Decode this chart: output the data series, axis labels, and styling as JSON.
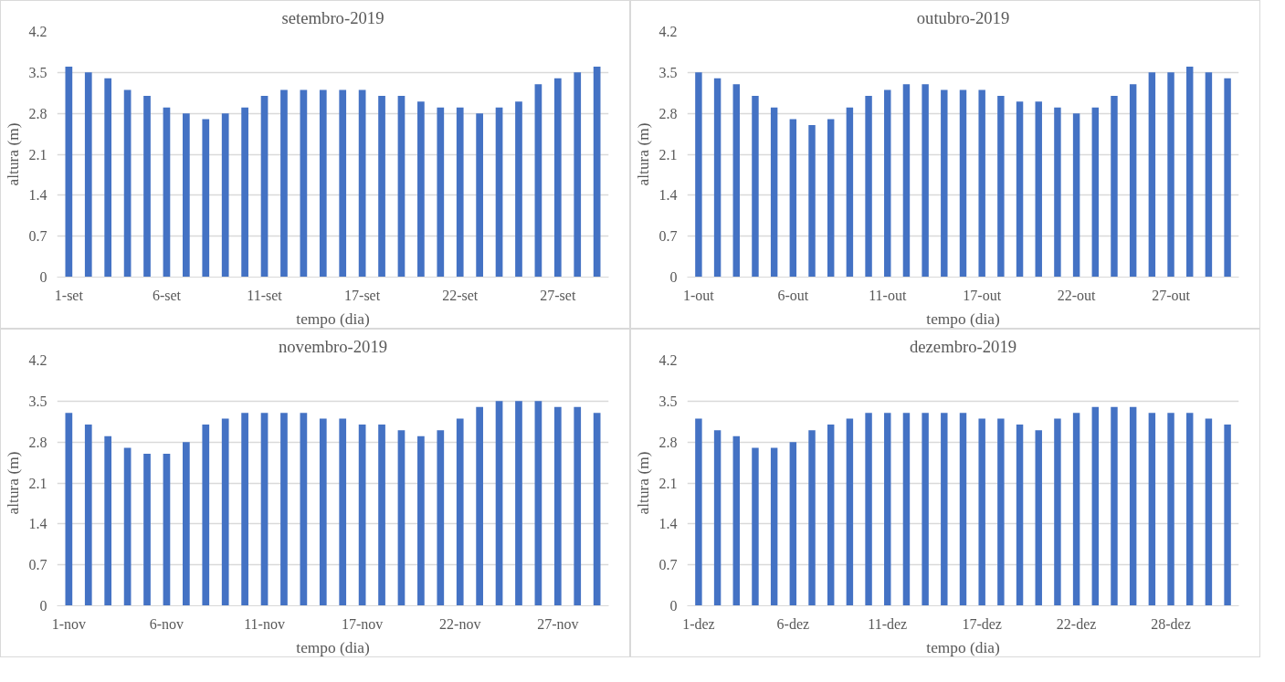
{
  "chart_data": [
    {
      "type": "bar",
      "title": "setembro-2019",
      "xlabel": "tempo (dia)",
      "ylabel": "altura (m)",
      "color": "#4472c4",
      "ylim": [
        0,
        4.2
      ],
      "yticks": [
        0,
        0.7,
        1.4,
        2.1,
        2.8,
        3.5,
        4.2
      ],
      "grid": "y",
      "categories": [
        "1-set",
        null,
        null,
        null,
        null,
        "6-set",
        null,
        null,
        null,
        null,
        "11-set",
        null,
        null,
        null,
        null,
        "17-set",
        null,
        null,
        null,
        null,
        "22-set",
        null,
        null,
        null,
        null,
        "27-set",
        null,
        null
      ],
      "values": [
        3.6,
        3.5,
        3.4,
        3.2,
        3.1,
        2.9,
        2.8,
        2.7,
        2.8,
        2.9,
        3.1,
        3.2,
        3.2,
        3.2,
        3.2,
        3.2,
        3.1,
        3.1,
        3.0,
        2.9,
        2.9,
        2.8,
        2.9,
        3.0,
        3.3,
        3.4,
        3.5,
        3.6
      ]
    },
    {
      "type": "bar",
      "title": "outubro-2019",
      "xlabel": "tempo (dia)",
      "ylabel": "altura (m)",
      "color": "#4472c4",
      "ylim": [
        0,
        4.2
      ],
      "yticks": [
        0,
        0.7,
        1.4,
        2.1,
        2.8,
        3.5,
        4.2
      ],
      "grid": "y",
      "categories": [
        "1-out",
        null,
        null,
        null,
        null,
        "6-out",
        null,
        null,
        null,
        null,
        "11-out",
        null,
        null,
        null,
        null,
        "17-out",
        null,
        null,
        null,
        null,
        "22-out",
        null,
        null,
        null,
        null,
        "27-out",
        null,
        null,
        null
      ],
      "values": [
        3.5,
        3.4,
        3.3,
        3.1,
        2.9,
        2.7,
        2.6,
        2.7,
        2.9,
        3.1,
        3.2,
        3.3,
        3.3,
        3.2,
        3.2,
        3.2,
        3.1,
        3.0,
        3.0,
        2.9,
        2.8,
        2.9,
        3.1,
        3.3,
        3.5,
        3.5,
        3.6,
        3.5,
        3.4
      ]
    },
    {
      "type": "bar",
      "title": "novembro-2019",
      "xlabel": "tempo (dia)",
      "ylabel": "altura (m)",
      "color": "#4472c4",
      "ylim": [
        0,
        4.2
      ],
      "yticks": [
        0,
        0.7,
        1.4,
        2.1,
        2.8,
        3.5,
        4.2
      ],
      "grid": "y",
      "categories": [
        "1-nov",
        null,
        null,
        null,
        null,
        "6-nov",
        null,
        null,
        null,
        null,
        "11-nov",
        null,
        null,
        null,
        null,
        "17-nov",
        null,
        null,
        null,
        null,
        "22-nov",
        null,
        null,
        null,
        null,
        "27-nov",
        null,
        null
      ],
      "values": [
        3.3,
        3.1,
        2.9,
        2.7,
        2.6,
        2.6,
        2.8,
        3.1,
        3.2,
        3.3,
        3.3,
        3.3,
        3.3,
        3.2,
        3.2,
        3.1,
        3.1,
        3.0,
        2.9,
        3.0,
        3.2,
        3.4,
        3.5,
        3.5,
        3.5,
        3.4,
        3.4,
        3.3
      ]
    },
    {
      "type": "bar",
      "title": "dezembro-2019",
      "xlabel": "tempo (dia)",
      "ylabel": "altura (m)",
      "color": "#4472c4",
      "ylim": [
        0,
        4.2
      ],
      "yticks": [
        0,
        0.7,
        1.4,
        2.1,
        2.8,
        3.5,
        4.2
      ],
      "grid": "y",
      "categories": [
        "1-dez",
        null,
        null,
        null,
        null,
        "6-dez",
        null,
        null,
        null,
        null,
        "11-dez",
        null,
        null,
        null,
        null,
        "17-dez",
        null,
        null,
        null,
        null,
        "22-dez",
        null,
        null,
        null,
        null,
        "28-dez",
        null,
        null,
        null
      ],
      "values": [
        3.2,
        3.0,
        2.9,
        2.7,
        2.7,
        2.8,
        3.0,
        3.1,
        3.2,
        3.3,
        3.3,
        3.3,
        3.3,
        3.3,
        3.3,
        3.2,
        3.2,
        3.1,
        3.0,
        3.2,
        3.3,
        3.4,
        3.4,
        3.4,
        3.3,
        3.3,
        3.3,
        3.2,
        3.1
      ]
    }
  ]
}
